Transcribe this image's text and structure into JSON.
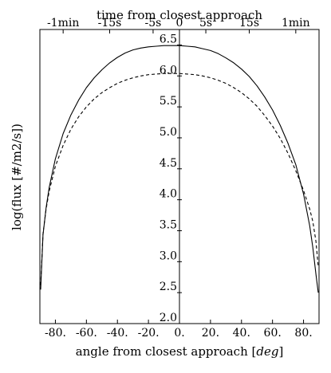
{
  "chart_data": {
    "type": "line",
    "title": "",
    "xlabel": "angle from closest approach [",
    "xlabel_unit": "deg",
    "xlabel_close": "]",
    "ylabel": "log(flux [#/m2/s])",
    "top_xlabel": "time from closest approach",
    "xlim": [
      -90,
      90
    ],
    "ylim": [
      2.0,
      6.75
    ],
    "x_ticks": [
      -80,
      -60,
      -40,
      -20,
      0,
      20,
      40,
      60,
      80
    ],
    "x_tick_labels": [
      "-80.",
      "-60.",
      "-40.",
      "-20.",
      "0.",
      "20.",
      "40.",
      "60.",
      "80."
    ],
    "y_ticks": [
      2.0,
      2.5,
      3.0,
      3.5,
      4.0,
      4.5,
      5.0,
      5.5,
      6.0,
      6.5
    ],
    "y_tick_labels": [
      "2.0",
      "2.5",
      "3.0",
      "3.5",
      "4.0",
      "4.5",
      "5.0",
      "5.5",
      "6.0",
      "6.5"
    ],
    "top_ticks": [
      {
        "x": -75,
        "label": "-1min"
      },
      {
        "x": -45,
        "label": "-15s"
      },
      {
        "x": -17,
        "label": "-5s"
      },
      {
        "x": 0,
        "label": "0"
      },
      {
        "x": 17,
        "label": "5s"
      },
      {
        "x": 45,
        "label": "15s"
      },
      {
        "x": 75,
        "label": "1min"
      }
    ],
    "grid": false,
    "series": [
      {
        "style": "solid",
        "color": "#000000",
        "x": [
          -89.5,
          -88,
          -86,
          -84,
          -80,
          -75,
          -70,
          -65,
          -60,
          -55,
          -50,
          -45,
          -40,
          -35,
          -30,
          -25,
          -20,
          -15,
          -10,
          -5,
          0,
          5,
          10,
          15,
          20,
          25,
          30,
          35,
          40,
          45,
          50,
          55,
          60,
          65,
          70,
          75,
          80,
          84,
          86,
          88,
          89.5
        ],
        "y": [
          2.55,
          3.43,
          3.87,
          4.2,
          4.66,
          5.07,
          5.37,
          5.61,
          5.81,
          5.97,
          6.1,
          6.21,
          6.3,
          6.37,
          6.42,
          6.45,
          6.47,
          6.48,
          6.49,
          6.49,
          6.49,
          6.48,
          6.47,
          6.44,
          6.41,
          6.36,
          6.29,
          6.21,
          6.11,
          5.99,
          5.84,
          5.66,
          5.45,
          5.2,
          4.91,
          4.57,
          4.09,
          3.58,
          3.23,
          2.8,
          2.5
        ]
      },
      {
        "style": "dashed",
        "color": "#000000",
        "x": [
          -89.5,
          -88,
          -86,
          -84,
          -80,
          -75,
          -70,
          -65,
          -60,
          -55,
          -50,
          -45,
          -40,
          -35,
          -30,
          -25,
          -20,
          -15,
          -10,
          -5,
          0,
          5,
          10,
          15,
          20,
          25,
          30,
          35,
          40,
          45,
          50,
          55,
          60,
          65,
          70,
          75,
          80,
          84,
          86,
          88,
          89.5
        ],
        "y": [
          2.62,
          3.45,
          3.85,
          4.14,
          4.54,
          4.88,
          5.14,
          5.34,
          5.5,
          5.63,
          5.73,
          5.81,
          5.88,
          5.93,
          5.97,
          6.0,
          6.02,
          6.03,
          6.04,
          6.04,
          6.04,
          6.03,
          6.02,
          6.0,
          5.97,
          5.93,
          5.88,
          5.81,
          5.73,
          5.63,
          5.51,
          5.36,
          5.19,
          4.99,
          4.75,
          4.47,
          4.15,
          3.85,
          3.65,
          3.33,
          2.92
        ]
      }
    ]
  }
}
